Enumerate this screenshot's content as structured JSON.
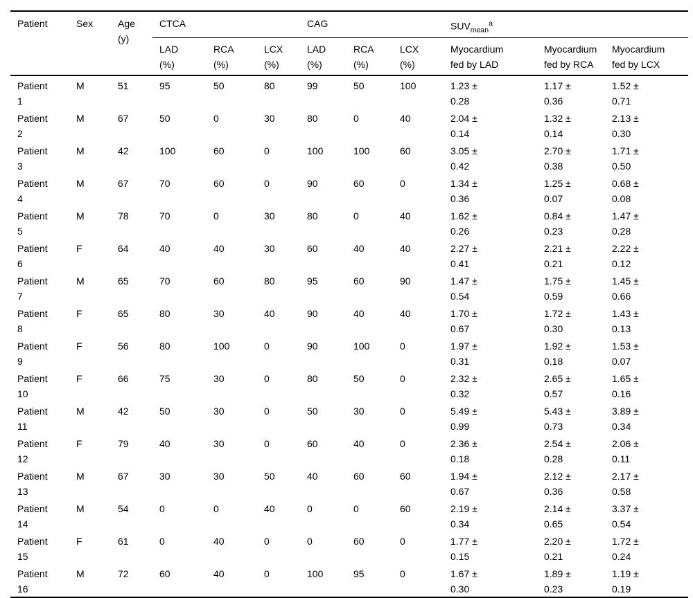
{
  "table": {
    "description": "Patient stenosis and SUVmean table",
    "header": {
      "patient": "Patient",
      "sex": "Sex",
      "age": "Age\n(y)",
      "groups": {
        "ctca": "CTCA",
        "cag": "CAG",
        "suv": {
          "base": "SUV",
          "sub": "mean",
          "sup": "a"
        }
      },
      "sub": [
        "LAD\n(%)",
        "RCA\n(%)",
        "LCX\n(%)",
        "LAD\n(%)",
        "RCA\n(%)",
        "LCX\n(%)",
        "Myocardium\nfed by LAD",
        "Myocardium\nfed by RCA",
        "Myocardium\nfed by LCX"
      ]
    }
  },
  "rows": [
    [
      "Patient\n1",
      "M",
      "51",
      "95",
      "50",
      "80",
      "99",
      "50",
      "100",
      "1.23 ±\n0.28",
      "1.17 ±\n0.36",
      "1.52 ±\n0.71"
    ],
    [
      "Patient\n2",
      "M",
      "67",
      "50",
      "0",
      "30",
      "80",
      "0",
      "40",
      "2.04 ±\n0.14",
      "1.32 ±\n0.14",
      "2.13 ±\n0.30"
    ],
    [
      "Patient\n3",
      "M",
      "42",
      "100",
      "60",
      "0",
      "100",
      "100",
      "60",
      "3.05 ±\n0.42",
      "2.70 ±\n0.38",
      "1.71 ±\n0.50"
    ],
    [
      "Patient\n4",
      "M",
      "67",
      "70",
      "60",
      "0",
      "90",
      "60",
      "0",
      "1.34 ±\n0.36",
      "1.25 ±\n0.07",
      "0.68 ±\n0.08"
    ],
    [
      "Patient\n5",
      "M",
      "78",
      "70",
      "0",
      "30",
      "80",
      "0",
      "40",
      "1.62 ±\n0.26",
      "0.84 ±\n0.23",
      "1.47 ±\n0.28"
    ],
    [
      "Patient\n6",
      "F",
      "64",
      "40",
      "40",
      "30",
      "60",
      "40",
      "40",
      "2.27 ±\n0.41",
      "2.21 ±\n0.21",
      "2.22 ±\n0.12"
    ],
    [
      "Patient\n7",
      "M",
      "65",
      "70",
      "60",
      "80",
      "95",
      "60",
      "90",
      "1.47 ±\n0.54",
      "1.75 ±\n0.59",
      "1.45 ±\n0.66"
    ],
    [
      "Patient\n8",
      "F",
      "65",
      "80",
      "30",
      "40",
      "90",
      "40",
      "40",
      "1.70 ±\n0.67",
      "1.72 ±\n0.30",
      "1.43 ±\n0.13"
    ],
    [
      "Patient\n9",
      "F",
      "56",
      "80",
      "100",
      "0",
      "90",
      "100",
      "0",
      "1.97 ±\n0.31",
      "1.92 ±\n0.18",
      "1.53 ±\n0.07"
    ],
    [
      "Patient\n10",
      "F",
      "66",
      "75",
      "30",
      "0",
      "80",
      "50",
      "0",
      "2.32 ±\n0.32",
      "2.65 ±\n0.57",
      "1.65 ±\n0.16"
    ],
    [
      "Patient\n11",
      "M",
      "42",
      "50",
      "30",
      "0",
      "50",
      "30",
      "0",
      "5.49 ±\n0.99",
      "5.43 ±\n0.73",
      "3.89 ±\n0.34"
    ],
    [
      "Patient\n12",
      "F",
      "79",
      "40",
      "30",
      "0",
      "60",
      "40",
      "0",
      "2.36 ±\n0.18",
      "2.54 ±\n0.28",
      "2.06 ±\n0.11"
    ],
    [
      "Patient\n13",
      "M",
      "67",
      "30",
      "30",
      "50",
      "40",
      "60",
      "60",
      "1.94 ±\n0.67",
      "2.12 ±\n0.36",
      "2.17 ±\n0.58"
    ],
    [
      "Patient\n14",
      "M",
      "54",
      "0",
      "0",
      "40",
      "0",
      "0",
      "60",
      "2.19 ±\n0.34",
      "2.14 ±\n0.65",
      "3.37 ±\n0.54"
    ],
    [
      "Patient\n15",
      "F",
      "61",
      "0",
      "40",
      "0",
      "0",
      "60",
      "0",
      "1.77 ±\n0.15",
      "2.20 ±\n0.21",
      "1.72 ±\n0.24"
    ],
    [
      "Patient\n16",
      "M",
      "72",
      "60",
      "40",
      "0",
      "100",
      "95",
      "0",
      "1.67 ±\n0.30",
      "1.89 ±\n0.23",
      "1.19 ±\n0.19"
    ]
  ]
}
